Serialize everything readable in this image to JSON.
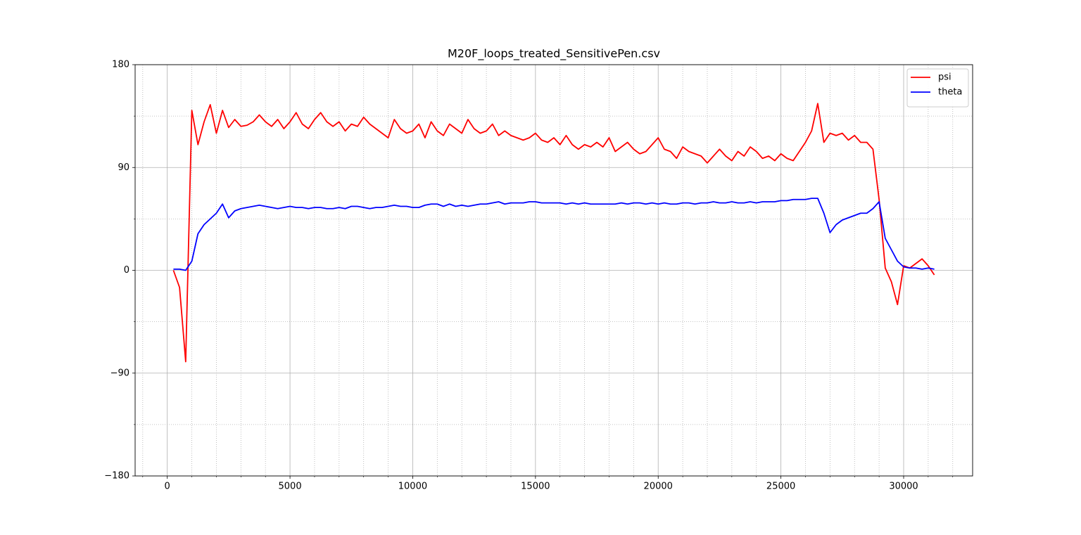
{
  "chart_data": {
    "type": "line",
    "title": "M20F_loops_treated_SensitivePen.csv",
    "x": [
      250,
      500,
      750,
      1000,
      1250,
      1500,
      1750,
      2000,
      2250,
      2500,
      2750,
      3000,
      3250,
      3500,
      3750,
      4000,
      4250,
      4500,
      4750,
      5000,
      5250,
      5500,
      5750,
      6000,
      6250,
      6500,
      6750,
      7000,
      7250,
      7500,
      7750,
      8000,
      8250,
      8500,
      8750,
      9000,
      9250,
      9500,
      9750,
      10000,
      10250,
      10500,
      10750,
      11000,
      11250,
      11500,
      11750,
      12000,
      12250,
      12500,
      12750,
      13000,
      13250,
      13500,
      13750,
      14000,
      14250,
      14500,
      14750,
      15000,
      15250,
      15500,
      15750,
      16000,
      16250,
      16500,
      16750,
      17000,
      17250,
      17500,
      17750,
      18000,
      18250,
      18500,
      18750,
      19000,
      19250,
      19500,
      19750,
      20000,
      20250,
      20500,
      20750,
      21000,
      21250,
      21500,
      21750,
      22000,
      22250,
      22500,
      22750,
      23000,
      23250,
      23500,
      23750,
      24000,
      24250,
      24500,
      24750,
      25000,
      25250,
      25500,
      25750,
      26000,
      26250,
      26500,
      26750,
      27000,
      27250,
      27500,
      27750,
      28000,
      28250,
      28500,
      28750,
      29000,
      29250,
      29500,
      29750,
      30000,
      30250,
      30500,
      30750,
      31000,
      31250
    ],
    "series": [
      {
        "name": "psi",
        "color": "#ff0000",
        "values": [
          0,
          -15,
          -80,
          140,
          110,
          130,
          145,
          120,
          140,
          125,
          132,
          126,
          127,
          130,
          136,
          130,
          126,
          132,
          124,
          130,
          138,
          128,
          124,
          132,
          138,
          130,
          126,
          130,
          122,
          128,
          126,
          134,
          128,
          124,
          120,
          116,
          132,
          124,
          120,
          122,
          128,
          116,
          130,
          122,
          118,
          128,
          124,
          120,
          132,
          124,
          120,
          122,
          128,
          118,
          122,
          118,
          116,
          114,
          116,
          120,
          114,
          112,
          116,
          110,
          118,
          110,
          106,
          110,
          108,
          112,
          108,
          116,
          104,
          108,
          112,
          106,
          102,
          104,
          110,
          116,
          106,
          104,
          98,
          108,
          104,
          102,
          100,
          94,
          100,
          106,
          100,
          96,
          104,
          100,
          108,
          104,
          98,
          100,
          96,
          102,
          98,
          96,
          104,
          112,
          122,
          146,
          112,
          120,
          118,
          120,
          114,
          118,
          112,
          112,
          106,
          62,
          2,
          -10,
          -30,
          4,
          2,
          6,
          10,
          4,
          -4
        ]
      },
      {
        "name": "theta",
        "color": "#0000ff",
        "values": [
          1,
          1,
          0,
          8,
          32,
          40,
          45,
          50,
          58,
          46,
          52,
          54,
          55,
          56,
          57,
          56,
          55,
          54,
          55,
          56,
          55,
          55,
          54,
          55,
          55,
          54,
          54,
          55,
          54,
          56,
          56,
          55,
          54,
          55,
          55,
          56,
          57,
          56,
          56,
          55,
          55,
          57,
          58,
          58,
          56,
          58,
          56,
          57,
          56,
          57,
          58,
          58,
          59,
          60,
          58,
          59,
          59,
          59,
          60,
          60,
          59,
          59,
          59,
          59,
          58,
          59,
          58,
          59,
          58,
          58,
          58,
          58,
          58,
          59,
          58,
          59,
          59,
          58,
          59,
          58,
          59,
          58,
          58,
          59,
          59,
          58,
          59,
          59,
          60,
          59,
          59,
          60,
          59,
          59,
          60,
          59,
          60,
          60,
          60,
          61,
          61,
          62,
          62,
          62,
          63,
          63,
          50,
          33,
          40,
          44,
          46,
          48,
          50,
          50,
          54,
          60,
          28,
          18,
          8,
          3,
          2,
          2,
          1,
          2,
          1
        ]
      }
    ],
    "xlim": [
      -1310,
      32810
    ],
    "xticks": [
      0,
      5000,
      10000,
      15000,
      20000,
      25000,
      30000
    ],
    "xminorticks": [
      -1000,
      1000,
      2000,
      3000,
      4000,
      6000,
      7000,
      8000,
      9000,
      11000,
      12000,
      13000,
      14000,
      16000,
      17000,
      18000,
      19000,
      21000,
      22000,
      23000,
      24000,
      26000,
      27000,
      28000,
      29000,
      31000,
      32000
    ],
    "ylim": [
      -180,
      180
    ],
    "yticks": [
      {
        "value": -180,
        "label": "−180"
      },
      {
        "value": -90,
        "label": "−90"
      },
      0,
      90,
      180
    ],
    "yminorticks": [
      -135,
      -45,
      45,
      135
    ],
    "grid": true,
    "legend": "upper right"
  }
}
